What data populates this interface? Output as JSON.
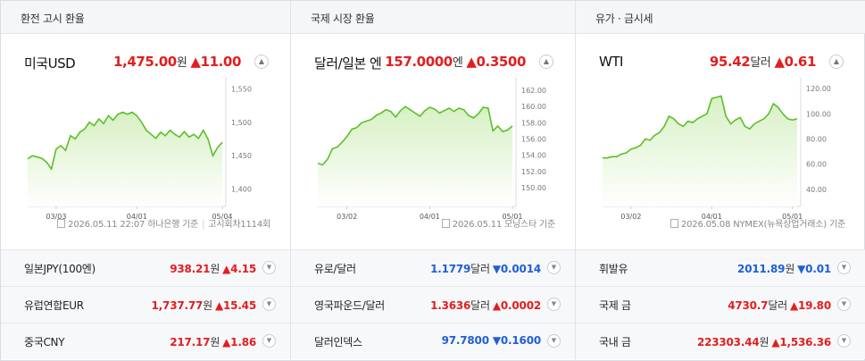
{
  "panels": [
    {
      "tab": "환전 고시 환율",
      "title": "미국USD",
      "value": "1,475.00",
      "unit": "원",
      "change": "▲11.00",
      "source": {
        "date": "2026.05.11 22:07 하나은행 기준",
        "extra": "고시회차1114회"
      },
      "rows": [
        {
          "name": "일본JPY(100엔)",
          "value": "938.21",
          "unit": "원",
          "change": "▲4.15",
          "dir": "up"
        },
        {
          "name": "유럽연합EUR",
          "value": "1,737.77",
          "unit": "원",
          "change": "▲15.45",
          "dir": "up"
        },
        {
          "name": "중국CNY",
          "value": "217.17",
          "unit": "원",
          "change": "▲1.86",
          "dir": "up"
        }
      ]
    },
    {
      "tab": "국제 시장 환율",
      "title": "달러/일본 엔",
      "value": "157.0000",
      "unit": "엔",
      "change": "▲0.3500",
      "source": {
        "date": "2026.05.11 모닝스타 기준",
        "extra": ""
      },
      "rows": [
        {
          "name": "유로/달러",
          "value": "1.1779",
          "unit": "달러",
          "change": "▼0.0014",
          "dir": "down"
        },
        {
          "name": "영국파운드/달러",
          "value": "1.3636",
          "unit": "달러",
          "change": "▲0.0002",
          "dir": "up"
        },
        {
          "name": "달러인덱스",
          "value": "97.7800",
          "unit": "",
          "change": "▼0.1600",
          "dir": "down"
        }
      ]
    },
    {
      "tab": "유가 · 금시세",
      "title": "WTI",
      "value": "95.42",
      "unit": "달러",
      "change": "▲0.61",
      "source": {
        "date": "2026.05.08 NYMEX(뉴욕상업거래소) 기준",
        "extra": ""
      },
      "rows": [
        {
          "name": "휘발유",
          "value": "2011.89",
          "unit": "원",
          "change": "▼0.01",
          "dir": "down"
        },
        {
          "name": "국제 금",
          "value": "4730.7",
          "unit": "달러",
          "change": "▲19.80",
          "dir": "up"
        },
        {
          "name": "국내 금",
          "value": "223303.44",
          "unit": "원",
          "change": "▲1,536.36",
          "dir": "up"
        }
      ]
    }
  ],
  "colors": {
    "up": "#e21e1e",
    "down": "#1f5fd6",
    "line": "#5cbf2a",
    "fill": "#d7f0c4"
  },
  "chart_data": [
    {
      "type": "area",
      "ylim": [
        1390,
        1560
      ],
      "yticks": [
        "1,550",
        "1,500",
        "1,450",
        "1,400"
      ],
      "ytick_values": [
        1550,
        1500,
        1450,
        1400
      ],
      "xticks": [
        "03/03",
        "04/01",
        "05/04"
      ],
      "xtick_index": [
        6,
        23,
        41
      ],
      "values": [
        1445,
        1450,
        1448,
        1446,
        1440,
        1430,
        1460,
        1465,
        1458,
        1480,
        1475,
        1485,
        1490,
        1500,
        1495,
        1505,
        1498,
        1510,
        1503,
        1512,
        1515,
        1512,
        1515,
        1510,
        1500,
        1488,
        1482,
        1476,
        1485,
        1480,
        1488,
        1482,
        1478,
        1486,
        1478,
        1482,
        1476,
        1488,
        1475,
        1450,
        1462,
        1470
      ]
    },
    {
      "type": "area",
      "ylim": [
        149,
        163
      ],
      "yticks": [
        "162.00",
        "160.00",
        "158.00",
        "156.00",
        "154.00",
        "152.00",
        "150.00"
      ],
      "ytick_values": [
        162,
        160,
        158,
        156,
        154,
        152,
        150
      ],
      "xticks": [
        "03/02",
        "04/01",
        "05/01"
      ],
      "xtick_index": [
        6,
        23,
        40
      ],
      "values": [
        153.0,
        152.8,
        153.5,
        154.8,
        155.0,
        155.6,
        156.3,
        157.2,
        157.4,
        158.0,
        158.2,
        158.4,
        158.9,
        159.2,
        159.6,
        159.4,
        158.7,
        159.5,
        160.0,
        159.6,
        159.2,
        158.8,
        159.5,
        159.9,
        159.7,
        159.2,
        159.5,
        159.8,
        159.4,
        159.8,
        159.6,
        158.9,
        158.6,
        159.1,
        159.9,
        159.8,
        157.0,
        157.6,
        156.9,
        157.1,
        157.6
      ]
    },
    {
      "type": "area",
      "ylim": [
        35,
        125
      ],
      "yticks": [
        "120.00",
        "100.00",
        "80.00",
        "60.00",
        "40.00"
      ],
      "ytick_values": [
        120,
        100,
        80,
        60,
        40
      ],
      "xticks": [
        "03/02",
        "04/01",
        "05/01"
      ],
      "xtick_index": [
        6,
        23,
        40
      ],
      "values": [
        65,
        65,
        66,
        66,
        68,
        69,
        72,
        73,
        75,
        80,
        79,
        83,
        85,
        90,
        98,
        96,
        92,
        90,
        94,
        93,
        96,
        98,
        100,
        112,
        113,
        114,
        98,
        92,
        95,
        97,
        90,
        88,
        92,
        94,
        96,
        100,
        108,
        105,
        100,
        96,
        95,
        96
      ]
    }
  ]
}
